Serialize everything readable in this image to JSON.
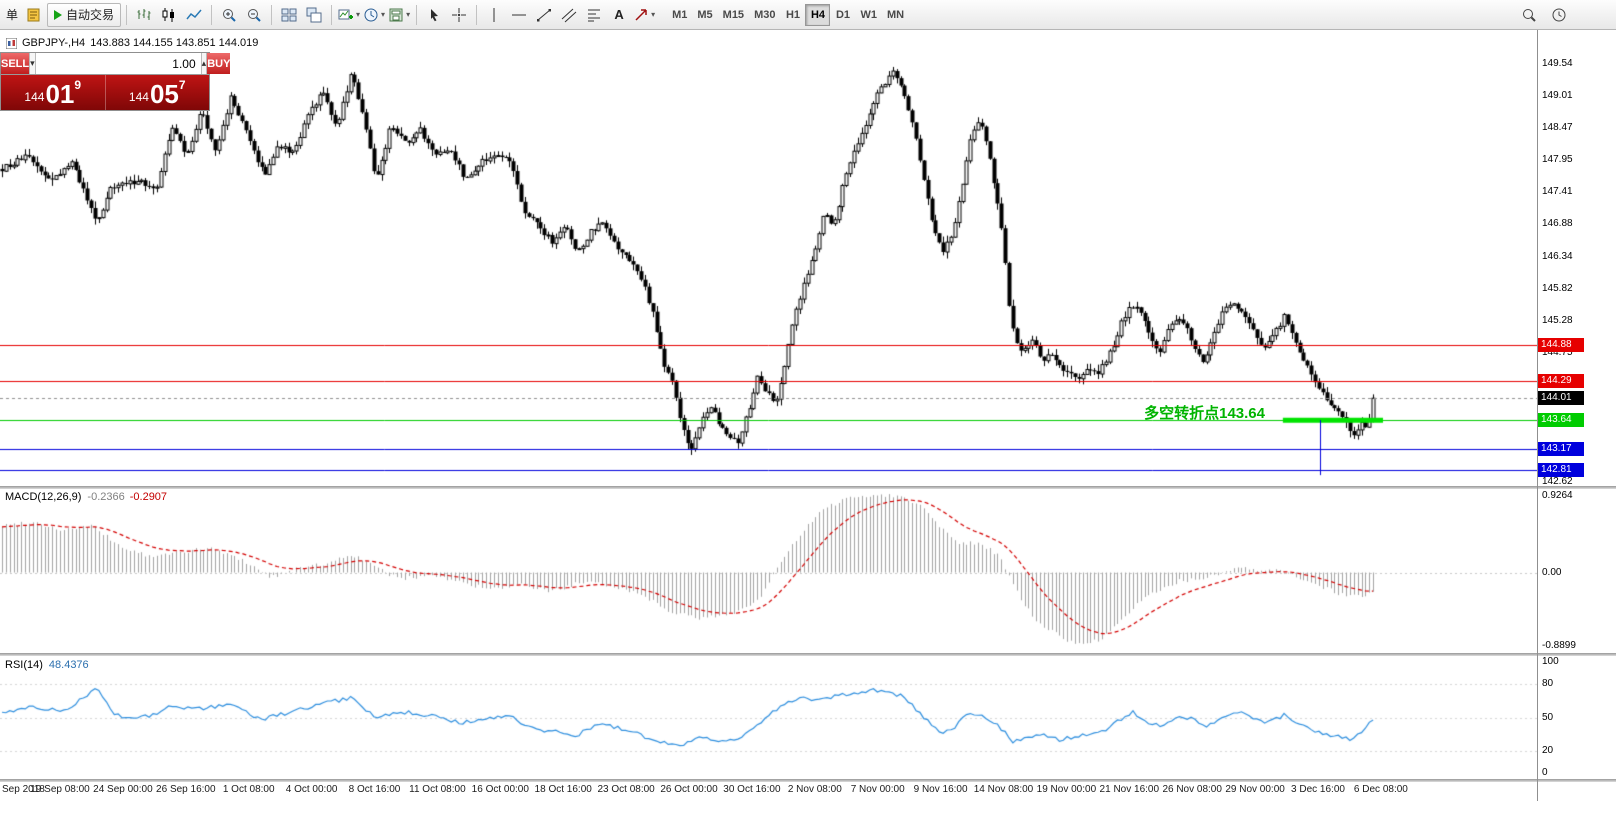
{
  "toolbar": {
    "new_order_label": "单",
    "autotrade_label": "自动交易",
    "text_tool_label": "A",
    "timeframes": [
      "M1",
      "M5",
      "M15",
      "M30",
      "H1",
      "H4",
      "D1",
      "W1",
      "MN"
    ],
    "active_timeframe": "H4"
  },
  "icons": {
    "dropdown": "▾",
    "spinner_up": "▴",
    "spinner_down": "▾"
  },
  "symbol_info": {
    "name": "GBPJPY-,H4",
    "ohlc": "143.883 144.155 143.851 144.019"
  },
  "trade_panel": {
    "sell_label": "SELL",
    "buy_label": "BUY",
    "volume": "1.00",
    "sell_price": {
      "prefix": "144",
      "big": "01",
      "sup": "9"
    },
    "buy_price": {
      "prefix": "144",
      "big": "05",
      "sup": "7"
    }
  },
  "chart_data": {
    "type": "candlestick",
    "symbol": "GBPJPY-",
    "period": "H4",
    "ohlc_display": {
      "open": "143.883",
      "high": "144.155",
      "low": "143.851",
      "close": "144.019"
    },
    "num_bars": 355,
    "y_axis": {
      "range": [
        142.55,
        150.1
      ],
      "ticks": [
        "149.54",
        "149.01",
        "148.47",
        "147.95",
        "147.41",
        "146.88",
        "146.34",
        "145.82",
        "145.28",
        "144.75",
        "142.62"
      ]
    },
    "x_axis": {
      "labels": [
        "Sep 2018",
        "19 Sep 08:00",
        "24 Sep 00:00",
        "26 Sep 16:00",
        "1 Oct 08:00",
        "4 Oct 00:00",
        "8 Oct 16:00",
        "11 Oct 08:00",
        "16 Oct 00:00",
        "18 Oct 16:00",
        "23 Oct 08:00",
        "26 Oct 00:00",
        "30 Oct 16:00",
        "2 Nov 08:00",
        "7 Nov 00:00",
        "9 Nov 16:00",
        "14 Nov 08:00",
        "19 Nov 00:00",
        "21 Nov 16:00",
        "26 Nov 08:00",
        "29 Nov 00:00",
        "3 Dec 16:00",
        "6 Dec 08:00"
      ]
    },
    "hlines": [
      {
        "price": 144.88,
        "color": "#e60000",
        "label": "144.88"
      },
      {
        "price": 144.29,
        "color": "#e60000",
        "label": "144.29"
      },
      {
        "price": 144.01,
        "color": "#000000",
        "label": "144.01",
        "style": "current"
      },
      {
        "price": 143.64,
        "color": "#00cc00",
        "label": "143.64",
        "segment": {
          "from": 0.933,
          "to": 1.0,
          "width": 5,
          "color": "#00e400"
        }
      },
      {
        "price": 143.17,
        "color": "#0000dd",
        "label": "143.17"
      },
      {
        "price": 142.81,
        "color": "#0000dd",
        "label": "142.81"
      }
    ],
    "vline": {
      "x": 0.96,
      "from": 143.64,
      "to": 142.73,
      "color": "#0000dd"
    },
    "annotation": {
      "text": "多空转折点143.64",
      "color": "#00b400"
    },
    "price_waypoints": [
      [
        0.0,
        147.8
      ],
      [
        0.018,
        148.0
      ],
      [
        0.036,
        147.6
      ],
      [
        0.051,
        147.9
      ],
      [
        0.069,
        146.9
      ],
      [
        0.08,
        147.5
      ],
      [
        0.098,
        147.6
      ],
      [
        0.113,
        147.5
      ],
      [
        0.124,
        148.5
      ],
      [
        0.135,
        148.0
      ],
      [
        0.145,
        148.8
      ],
      [
        0.156,
        148.1
      ],
      [
        0.167,
        149.0
      ],
      [
        0.178,
        148.4
      ],
      [
        0.191,
        147.7
      ],
      [
        0.202,
        148.2
      ],
      [
        0.212,
        148.05
      ],
      [
        0.224,
        148.7
      ],
      [
        0.234,
        149.1
      ],
      [
        0.244,
        148.5
      ],
      [
        0.255,
        149.4
      ],
      [
        0.264,
        148.6
      ],
      [
        0.273,
        147.6
      ],
      [
        0.284,
        148.55
      ],
      [
        0.295,
        148.2
      ],
      [
        0.305,
        148.45
      ],
      [
        0.316,
        148.0
      ],
      [
        0.327,
        148.15
      ],
      [
        0.338,
        147.6
      ],
      [
        0.349,
        147.9
      ],
      [
        0.36,
        148.05
      ],
      [
        0.371,
        147.95
      ],
      [
        0.38,
        147.1
      ],
      [
        0.391,
        146.85
      ],
      [
        0.401,
        146.6
      ],
      [
        0.411,
        146.85
      ],
      [
        0.42,
        146.4
      ],
      [
        0.429,
        146.75
      ],
      [
        0.438,
        146.9
      ],
      [
        0.448,
        146.5
      ],
      [
        0.458,
        146.3
      ],
      [
        0.468,
        145.9
      ],
      [
        0.476,
        145.3
      ],
      [
        0.482,
        144.6
      ],
      [
        0.489,
        144.25
      ],
      [
        0.495,
        143.6
      ],
      [
        0.502,
        143.15
      ],
      [
        0.509,
        143.55
      ],
      [
        0.516,
        143.9
      ],
      [
        0.523,
        143.6
      ],
      [
        0.53,
        143.4
      ],
      [
        0.537,
        143.3
      ],
      [
        0.545,
        143.85
      ],
      [
        0.551,
        144.35
      ],
      [
        0.558,
        144.1
      ],
      [
        0.564,
        143.9
      ],
      [
        0.571,
        144.6
      ],
      [
        0.578,
        145.4
      ],
      [
        0.585,
        145.9
      ],
      [
        0.593,
        146.5
      ],
      [
        0.6,
        147.1
      ],
      [
        0.606,
        146.8
      ],
      [
        0.613,
        147.5
      ],
      [
        0.62,
        148.05
      ],
      [
        0.628,
        148.4
      ],
      [
        0.635,
        148.9
      ],
      [
        0.642,
        149.15
      ],
      [
        0.65,
        149.4
      ],
      [
        0.657,
        149.1
      ],
      [
        0.664,
        148.6
      ],
      [
        0.671,
        147.8
      ],
      [
        0.678,
        146.95
      ],
      [
        0.686,
        146.45
      ],
      [
        0.693,
        146.75
      ],
      [
        0.7,
        147.5
      ],
      [
        0.706,
        148.3
      ],
      [
        0.713,
        148.6
      ],
      [
        0.719,
        148.1
      ],
      [
        0.724,
        147.5
      ],
      [
        0.73,
        146.7
      ],
      [
        0.735,
        145.4
      ],
      [
        0.739,
        144.9
      ],
      [
        0.745,
        144.8
      ],
      [
        0.752,
        144.95
      ],
      [
        0.759,
        144.6
      ],
      [
        0.765,
        144.75
      ],
      [
        0.772,
        144.55
      ],
      [
        0.778,
        144.4
      ],
      [
        0.785,
        144.3
      ],
      [
        0.791,
        144.45
      ],
      [
        0.798,
        144.4
      ],
      [
        0.804,
        144.6
      ],
      [
        0.811,
        144.9
      ],
      [
        0.817,
        145.3
      ],
      [
        0.824,
        145.55
      ],
      [
        0.831,
        145.45
      ],
      [
        0.837,
        145.0
      ],
      [
        0.844,
        144.7
      ],
      [
        0.85,
        145.1
      ],
      [
        0.857,
        145.35
      ],
      [
        0.863,
        145.2
      ],
      [
        0.87,
        144.8
      ],
      [
        0.876,
        144.6
      ],
      [
        0.883,
        145.0
      ],
      [
        0.889,
        145.4
      ],
      [
        0.896,
        145.55
      ],
      [
        0.903,
        145.5
      ],
      [
        0.909,
        145.25
      ],
      [
        0.916,
        144.95
      ],
      [
        0.922,
        144.85
      ],
      [
        0.929,
        145.1
      ],
      [
        0.935,
        145.35
      ],
      [
        0.942,
        145.05
      ],
      [
        0.948,
        144.7
      ],
      [
        0.955,
        144.35
      ],
      [
        0.962,
        144.1
      ],
      [
        0.968,
        143.95
      ],
      [
        0.975,
        143.75
      ],
      [
        0.981,
        143.55
      ],
      [
        0.986,
        143.4
      ],
      [
        0.991,
        143.6
      ],
      [
        0.996,
        143.45
      ],
      [
        1.0,
        144.02
      ]
    ]
  },
  "macd": {
    "label": "MACD(12,26,9)",
    "value_main": "-0.2366",
    "value_signal": "-0.2907",
    "axis_labels": [
      "0.9264",
      "0.00",
      "-0.8899"
    ],
    "range": [
      -0.8899,
      0.9264
    ],
    "waypoints": [
      [
        0.0,
        0.55
      ],
      [
        0.022,
        0.6
      ],
      [
        0.044,
        0.5
      ],
      [
        0.065,
        0.55
      ],
      [
        0.087,
        0.3
      ],
      [
        0.109,
        0.18
      ],
      [
        0.131,
        0.25
      ],
      [
        0.153,
        0.28
      ],
      [
        0.175,
        0.15
      ],
      [
        0.196,
        -0.05
      ],
      [
        0.218,
        0.05
      ],
      [
        0.24,
        0.12
      ],
      [
        0.255,
        0.22
      ],
      [
        0.273,
        0.05
      ],
      [
        0.291,
        -0.08
      ],
      [
        0.313,
        -0.02
      ],
      [
        0.335,
        -0.12
      ],
      [
        0.356,
        -0.2
      ],
      [
        0.378,
        -0.15
      ],
      [
        0.4,
        -0.22
      ],
      [
        0.422,
        -0.12
      ],
      [
        0.444,
        -0.15
      ],
      [
        0.465,
        -0.25
      ],
      [
        0.487,
        -0.45
      ],
      [
        0.509,
        -0.55
      ],
      [
        0.524,
        -0.5
      ],
      [
        0.538,
        -0.45
      ],
      [
        0.553,
        -0.3
      ],
      [
        0.567,
        0.1
      ],
      [
        0.582,
        0.45
      ],
      [
        0.596,
        0.7
      ],
      [
        0.611,
        0.85
      ],
      [
        0.625,
        0.9
      ],
      [
        0.64,
        0.92
      ],
      [
        0.655,
        0.9
      ],
      [
        0.669,
        0.8
      ],
      [
        0.684,
        0.55
      ],
      [
        0.698,
        0.35
      ],
      [
        0.713,
        0.35
      ],
      [
        0.727,
        0.2
      ],
      [
        0.742,
        -0.3
      ],
      [
        0.756,
        -0.6
      ],
      [
        0.771,
        -0.75
      ],
      [
        0.785,
        -0.85
      ],
      [
        0.8,
        -0.8
      ],
      [
        0.815,
        -0.6
      ],
      [
        0.829,
        -0.35
      ],
      [
        0.844,
        -0.2
      ],
      [
        0.858,
        -0.1
      ],
      [
        0.873,
        -0.08
      ],
      [
        0.887,
        -0.02
      ],
      [
        0.902,
        0.05
      ],
      [
        0.916,
        0.02
      ],
      [
        0.931,
        0.02
      ],
      [
        0.945,
        -0.05
      ],
      [
        0.96,
        -0.15
      ],
      [
        0.975,
        -0.25
      ],
      [
        0.989,
        -0.28
      ],
      [
        1.0,
        -0.2366
      ]
    ]
  },
  "rsi": {
    "label": "RSI(14)",
    "value": "48.4376",
    "axis_labels": [
      "100",
      "80",
      "50",
      "20",
      "0"
    ],
    "levels": [
      80,
      50,
      20
    ],
    "range": [
      0,
      100
    ],
    "waypoints": [
      [
        0.0,
        55
      ],
      [
        0.022,
        60
      ],
      [
        0.044,
        55
      ],
      [
        0.065,
        72
      ],
      [
        0.069,
        78
      ],
      [
        0.08,
        55
      ],
      [
        0.095,
        48
      ],
      [
        0.109,
        52
      ],
      [
        0.124,
        60
      ],
      [
        0.145,
        58
      ],
      [
        0.167,
        62
      ],
      [
        0.189,
        48
      ],
      [
        0.211,
        55
      ],
      [
        0.233,
        62
      ],
      [
        0.255,
        68
      ],
      [
        0.273,
        50
      ],
      [
        0.291,
        55
      ],
      [
        0.313,
        52
      ],
      [
        0.335,
        45
      ],
      [
        0.356,
        50
      ],
      [
        0.371,
        52
      ],
      [
        0.385,
        40
      ],
      [
        0.4,
        38
      ],
      [
        0.418,
        33
      ],
      [
        0.436,
        45
      ],
      [
        0.458,
        38
      ],
      [
        0.473,
        30
      ],
      [
        0.495,
        25
      ],
      [
        0.509,
        32
      ],
      [
        0.524,
        28
      ],
      [
        0.538,
        30
      ],
      [
        0.553,
        45
      ],
      [
        0.567,
        60
      ],
      [
        0.582,
        68
      ],
      [
        0.596,
        65
      ],
      [
        0.611,
        70
      ],
      [
        0.625,
        72
      ],
      [
        0.64,
        75
      ],
      [
        0.655,
        70
      ],
      [
        0.669,
        55
      ],
      [
        0.684,
        35
      ],
      [
        0.695,
        42
      ],
      [
        0.706,
        55
      ],
      [
        0.716,
        50
      ],
      [
        0.727,
        42
      ],
      [
        0.738,
        28
      ],
      [
        0.749,
        32
      ],
      [
        0.76,
        35
      ],
      [
        0.771,
        30
      ],
      [
        0.782,
        33
      ],
      [
        0.793,
        35
      ],
      [
        0.804,
        38
      ],
      [
        0.815,
        48
      ],
      [
        0.825,
        55
      ],
      [
        0.836,
        45
      ],
      [
        0.847,
        42
      ],
      [
        0.858,
        52
      ],
      [
        0.869,
        48
      ],
      [
        0.88,
        42
      ],
      [
        0.891,
        52
      ],
      [
        0.902,
        55
      ],
      [
        0.913,
        48
      ],
      [
        0.924,
        45
      ],
      [
        0.935,
        52
      ],
      [
        0.945,
        45
      ],
      [
        0.956,
        38
      ],
      [
        0.967,
        35
      ],
      [
        0.978,
        32
      ],
      [
        0.985,
        30
      ],
      [
        0.993,
        40
      ],
      [
        1.0,
        48.4
      ]
    ]
  }
}
